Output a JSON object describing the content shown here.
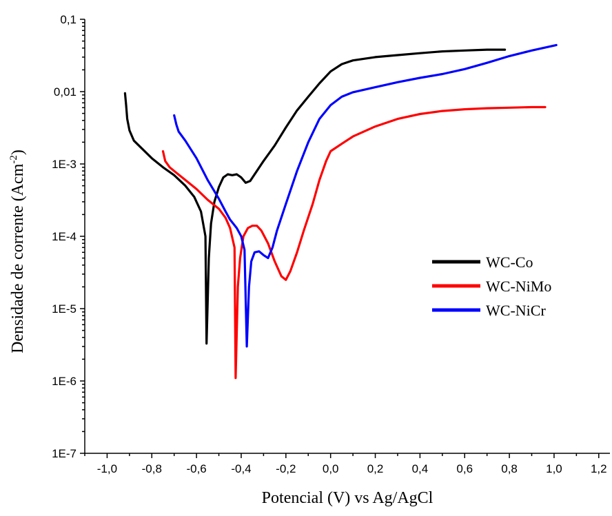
{
  "chart_data": {
    "type": "line",
    "title": "",
    "xlabel": "Potencial (V) vs Ag/AgCl",
    "ylabel": "Densidade de corrente (Acm",
    "ylabel_sup": "-2",
    "ylabel_close": ")",
    "xlim": [
      -1.1,
      1.25
    ],
    "ylim": [
      1e-07,
      0.1
    ],
    "yscale": "log",
    "grid": false,
    "legend_position": "center-right",
    "x_ticks": [
      -1.0,
      -0.8,
      -0.6,
      -0.4,
      -0.2,
      0.0,
      0.2,
      0.4,
      0.6,
      0.8,
      1.0,
      1.2
    ],
    "x_tick_labels": [
      "-1,0",
      "-0,8",
      "-0,6",
      "-0,4",
      "-0,2",
      "0,0",
      "0,2",
      "0,4",
      "0,6",
      "0,8",
      "1,0",
      "1,2"
    ],
    "y_ticks": [
      1e-07,
      1e-06,
      1e-05,
      0.0001,
      0.001,
      0.01,
      0.1
    ],
    "y_tick_labels": [
      "1E-7",
      "1E-6",
      "1E-5",
      "1E-4",
      "1E-3",
      "0,01",
      "0,1"
    ],
    "series": [
      {
        "name": "WC-Co",
        "color": "#000000",
        "points": [
          [
            -0.92,
            0.0095
          ],
          [
            -0.915,
            0.0065
          ],
          [
            -0.91,
            0.0042
          ],
          [
            -0.9,
            0.0029
          ],
          [
            -0.88,
            0.0021
          ],
          [
            -0.85,
            0.0017
          ],
          [
            -0.8,
            0.0012
          ],
          [
            -0.75,
            0.0009
          ],
          [
            -0.7,
            0.0007
          ],
          [
            -0.65,
            0.0005
          ],
          [
            -0.61,
            0.00035
          ],
          [
            -0.58,
            0.00022
          ],
          [
            -0.56,
            0.0001
          ],
          [
            -0.555,
            3.3e-06
          ],
          [
            -0.545,
            5e-05
          ],
          [
            -0.535,
            0.00015
          ],
          [
            -0.52,
            0.0003
          ],
          [
            -0.5,
            0.00048
          ],
          [
            -0.48,
            0.00065
          ],
          [
            -0.46,
            0.00072
          ],
          [
            -0.44,
            0.0007
          ],
          [
            -0.42,
            0.00072
          ],
          [
            -0.4,
            0.00065
          ],
          [
            -0.38,
            0.00055
          ],
          [
            -0.36,
            0.00058
          ],
          [
            -0.33,
            0.0008
          ],
          [
            -0.3,
            0.0011
          ],
          [
            -0.25,
            0.0018
          ],
          [
            -0.2,
            0.0032
          ],
          [
            -0.15,
            0.0055
          ],
          [
            -0.1,
            0.0085
          ],
          [
            -0.05,
            0.013
          ],
          [
            0.0,
            0.019
          ],
          [
            0.05,
            0.024
          ],
          [
            0.1,
            0.027
          ],
          [
            0.2,
            0.03
          ],
          [
            0.3,
            0.032
          ],
          [
            0.4,
            0.034
          ],
          [
            0.5,
            0.036
          ],
          [
            0.6,
            0.037
          ],
          [
            0.7,
            0.038
          ],
          [
            0.78,
            0.038
          ]
        ]
      },
      {
        "name": "WC-NiMo",
        "color": "#ff0000",
        "points": [
          [
            -0.75,
            0.0015
          ],
          [
            -0.74,
            0.0011
          ],
          [
            -0.72,
            0.0009
          ],
          [
            -0.7,
            0.0008
          ],
          [
            -0.65,
            0.0006
          ],
          [
            -0.6,
            0.00045
          ],
          [
            -0.55,
            0.00032
          ],
          [
            -0.5,
            0.00024
          ],
          [
            -0.47,
            0.00018
          ],
          [
            -0.45,
            0.00013
          ],
          [
            -0.43,
            7e-05
          ],
          [
            -0.425,
            1.1e-06
          ],
          [
            -0.415,
            2e-05
          ],
          [
            -0.405,
            5e-05
          ],
          [
            -0.39,
            0.0001
          ],
          [
            -0.37,
            0.00013
          ],
          [
            -0.35,
            0.00014
          ],
          [
            -0.33,
            0.00014
          ],
          [
            -0.31,
            0.00012
          ],
          [
            -0.28,
            8e-05
          ],
          [
            -0.25,
            4.5e-05
          ],
          [
            -0.22,
            2.8e-05
          ],
          [
            -0.2,
            2.5e-05
          ],
          [
            -0.18,
            3.3e-05
          ],
          [
            -0.15,
            6e-05
          ],
          [
            -0.12,
            0.00012
          ],
          [
            -0.08,
            0.00028
          ],
          [
            -0.05,
            0.0006
          ],
          [
            -0.02,
            0.0011
          ],
          [
            0.0,
            0.0015
          ],
          [
            0.05,
            0.0019
          ],
          [
            0.1,
            0.0024
          ],
          [
            0.2,
            0.0033
          ],
          [
            0.3,
            0.0042
          ],
          [
            0.4,
            0.0049
          ],
          [
            0.5,
            0.0054
          ],
          [
            0.6,
            0.0057
          ],
          [
            0.7,
            0.0059
          ],
          [
            0.8,
            0.006
          ],
          [
            0.9,
            0.0061
          ],
          [
            0.96,
            0.0061
          ]
        ]
      },
      {
        "name": "WC-NiCr",
        "color": "#0000ff",
        "points": [
          [
            -0.7,
            0.0047
          ],
          [
            -0.69,
            0.0035
          ],
          [
            -0.68,
            0.0028
          ],
          [
            -0.65,
            0.0021
          ],
          [
            -0.6,
            0.0012
          ],
          [
            -0.55,
            0.0006
          ],
          [
            -0.5,
            0.00033
          ],
          [
            -0.47,
            0.00022
          ],
          [
            -0.45,
            0.00017
          ],
          [
            -0.42,
            0.00013
          ],
          [
            -0.4,
            0.0001
          ],
          [
            -0.385,
            6.5e-05
          ],
          [
            -0.375,
            3e-06
          ],
          [
            -0.365,
            2e-05
          ],
          [
            -0.355,
            4.5e-05
          ],
          [
            -0.34,
            6e-05
          ],
          [
            -0.32,
            6.2e-05
          ],
          [
            -0.3,
            5.5e-05
          ],
          [
            -0.28,
            5e-05
          ],
          [
            -0.26,
            7e-05
          ],
          [
            -0.24,
            0.00012
          ],
          [
            -0.2,
            0.00028
          ],
          [
            -0.15,
            0.0008
          ],
          [
            -0.1,
            0.002
          ],
          [
            -0.05,
            0.0042
          ],
          [
            0.0,
            0.0065
          ],
          [
            0.05,
            0.0085
          ],
          [
            0.1,
            0.0098
          ],
          [
            0.2,
            0.0115
          ],
          [
            0.3,
            0.0135
          ],
          [
            0.4,
            0.0155
          ],
          [
            0.5,
            0.0175
          ],
          [
            0.6,
            0.0205
          ],
          [
            0.7,
            0.025
          ],
          [
            0.8,
            0.031
          ],
          [
            0.9,
            0.037
          ],
          [
            1.01,
            0.044
          ]
        ]
      }
    ]
  }
}
